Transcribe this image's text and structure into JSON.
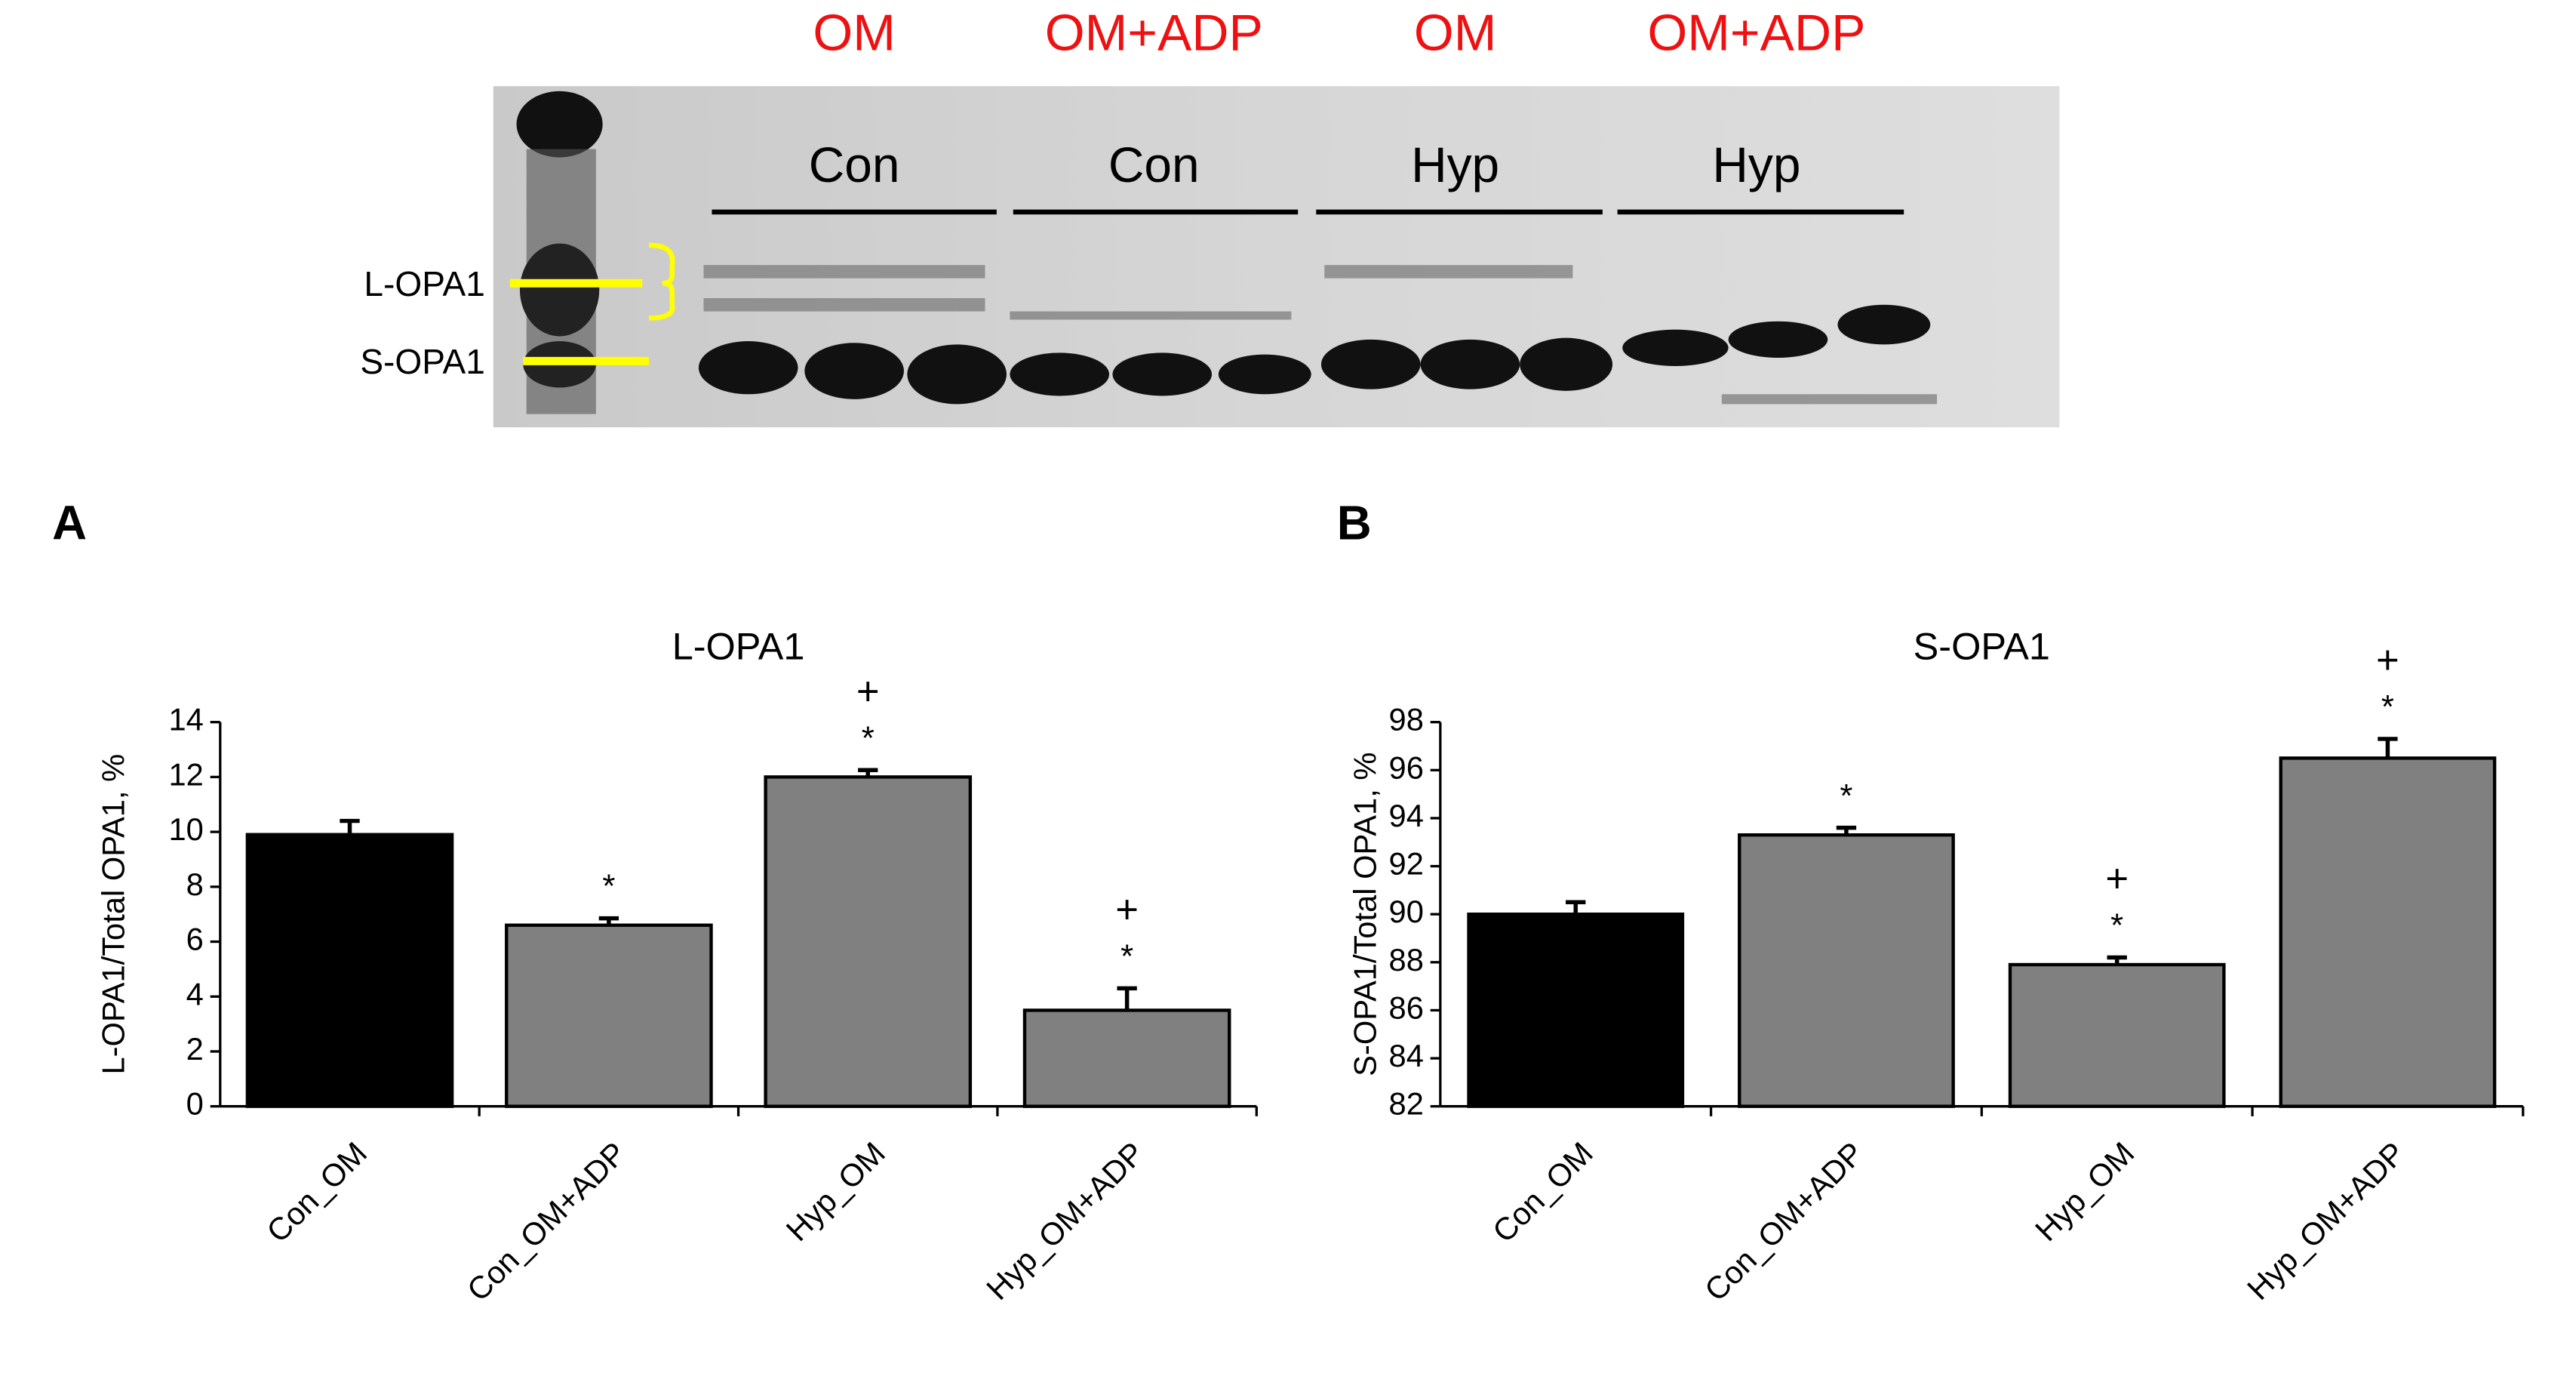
{
  "blot": {
    "treatments": [
      "OM",
      "OM+ADP",
      "OM",
      "OM+ADP"
    ],
    "groups": [
      "Con",
      "Con",
      "Hyp",
      "Hyp"
    ],
    "band_labels": [
      "L-OPA1",
      "S-OPA1"
    ]
  },
  "chart_data": [
    {
      "type": "bar",
      "panel": "A",
      "title": "L-OPA1",
      "y_label": "L-OPA1/Total OPA1, %",
      "categories": [
        "Con_OM",
        "Con_OM+ADP",
        "Hyp_OM",
        "Hyp_OM+ADP"
      ],
      "values": [
        9.9,
        6.6,
        12.0,
        3.5
      ],
      "errors": [
        0.5,
        0.25,
        0.25,
        0.8
      ],
      "colors": [
        "#000000",
        "#808080",
        "#808080",
        "#808080"
      ],
      "bar_labels": [
        [],
        [
          "*"
        ],
        [
          "+",
          "*"
        ],
        [
          "+",
          "*"
        ]
      ],
      "ylim": [
        0,
        14
      ],
      "yticks": [
        0,
        2,
        4,
        6,
        8,
        10,
        12,
        14
      ]
    },
    {
      "type": "bar",
      "panel": "B",
      "title": "S-OPA1",
      "y_label": "S-OPA1/Total OPA1, %",
      "categories": [
        "Con_OM",
        "Con_OM+ADP",
        "Hyp_OM",
        "Hyp_OM+ADP"
      ],
      "values": [
        90.0,
        93.3,
        87.9,
        96.5
      ],
      "errors": [
        0.5,
        0.3,
        0.3,
        0.8
      ],
      "colors": [
        "#000000",
        "#808080",
        "#808080",
        "#808080"
      ],
      "bar_labels": [
        [],
        [
          "*"
        ],
        [
          "+",
          "*"
        ],
        [
          "+",
          "*"
        ]
      ],
      "ylim": [
        82,
        98
      ],
      "yticks": [
        82,
        84,
        86,
        88,
        90,
        92,
        94,
        96,
        98
      ]
    }
  ]
}
